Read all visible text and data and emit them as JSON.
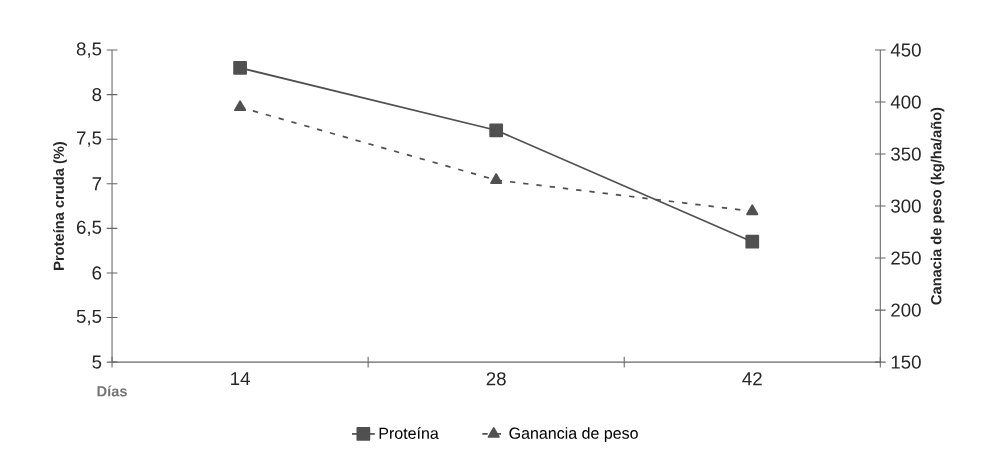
{
  "chart_data": {
    "type": "line",
    "xlabel": "Días",
    "ylabel": "Proteína cruda (%)",
    "y2label": "Canacia de peso (kg/ha/año)",
    "categories": [
      "14",
      "28",
      "42"
    ],
    "series": [
      {
        "name": "Proteína",
        "color": "#505050",
        "values": [
          8.3,
          7.6,
          6.35
        ],
        "marker": "square",
        "line_style": "solid"
      },
      {
        "name": "Ganancia de peso",
        "color": "#505050",
        "values": [
          395,
          325,
          295
        ],
        "marker": "triangle",
        "line_style": "dashed",
        "axis": "y2"
      }
    ],
    "ylim": [
      5,
      8.5
    ],
    "yticks": [
      {
        "value": 5,
        "label": "5"
      },
      {
        "value": 5.5,
        "label": "5,5"
      },
      {
        "value": 6,
        "label": "6"
      },
      {
        "value": 6.5,
        "label": "6,5"
      },
      {
        "value": 7,
        "label": "7"
      },
      {
        "value": 7.5,
        "label": "7,5"
      },
      {
        "value": 8,
        "label": "8"
      },
      {
        "value": 8.5,
        "label": "8,5"
      }
    ],
    "y2lim": [
      150,
      450
    ],
    "y2ticks": [
      150,
      200,
      250,
      300,
      350,
      400,
      450
    ],
    "grid": false,
    "legend": "bottom"
  }
}
